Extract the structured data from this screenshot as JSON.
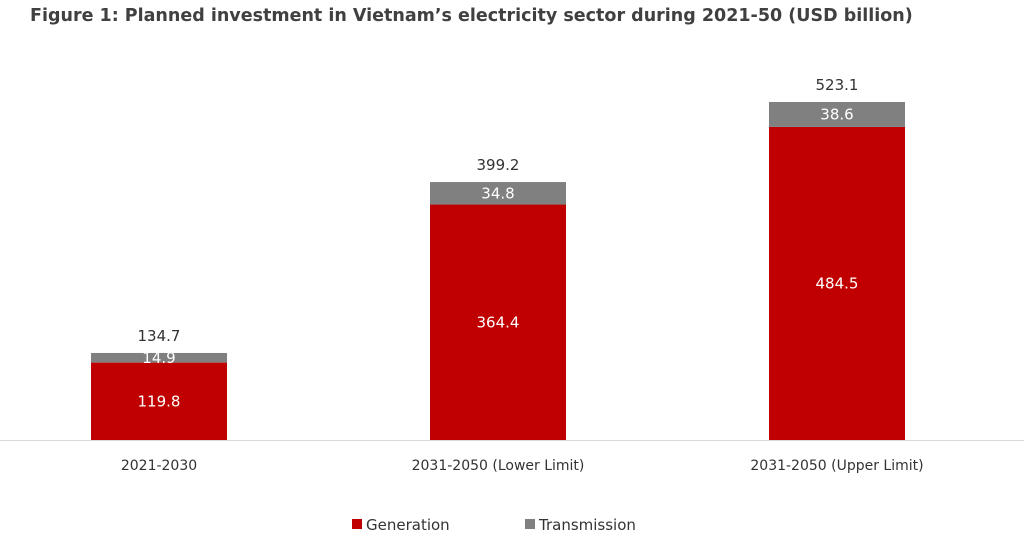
{
  "chart_data": {
    "type": "bar",
    "stacked": true,
    "title": "Figure 1: Planned investment in Vietnam’s electricity sector during 2021-50 (USD billion)",
    "xlabel": "",
    "ylabel": "",
    "ylim": [
      0,
      523.1
    ],
    "grid": false,
    "legend_position": "bottom",
    "categories": [
      "2021-2030",
      "2031-2050 (Lower Limit)",
      "2031-2050 (Upper Limit)"
    ],
    "series": [
      {
        "name": "Generation",
        "values": [
          119.8,
          364.4,
          484.5
        ],
        "color": "#c00000"
      },
      {
        "name": "Transmission",
        "values": [
          14.9,
          34.8,
          38.6
        ],
        "color": "#808080"
      }
    ],
    "totals": [
      134.7,
      399.2,
      523.1
    ],
    "segment_labels": [
      [
        "119.8",
        "364.4",
        "484.5"
      ],
      [
        "14.9",
        "34.8",
        "38.6"
      ]
    ],
    "total_labels": [
      "134.7",
      "399.2",
      "523.1"
    ]
  }
}
